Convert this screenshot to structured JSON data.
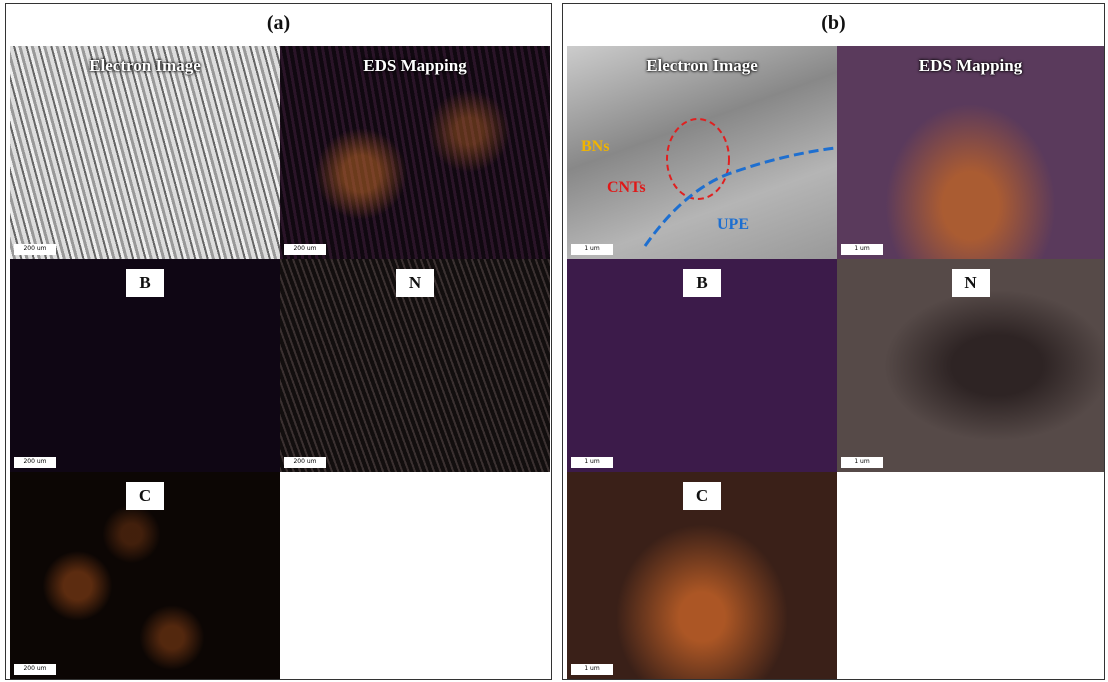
{
  "panels": [
    {
      "label": "(a)",
      "images": [
        {
          "title": "Electron Image",
          "scale": "200 um"
        },
        {
          "title": "EDS Mapping",
          "scale": "200 um"
        },
        {
          "title": "B",
          "scale": "200 um"
        },
        {
          "title": "N",
          "scale": "200 um"
        },
        {
          "title": "C",
          "scale": "200 um"
        }
      ]
    },
    {
      "label": "(b)",
      "images": [
        {
          "title": "Electron Image",
          "scale": "1 um",
          "annotations": [
            "BNs",
            "CNTs",
            "UPE"
          ]
        },
        {
          "title": "EDS Mapping",
          "scale": "1 um"
        },
        {
          "title": "B",
          "scale": "1 um"
        },
        {
          "title": "N",
          "scale": "1 um"
        },
        {
          "title": "C",
          "scale": "1 um"
        }
      ]
    }
  ]
}
